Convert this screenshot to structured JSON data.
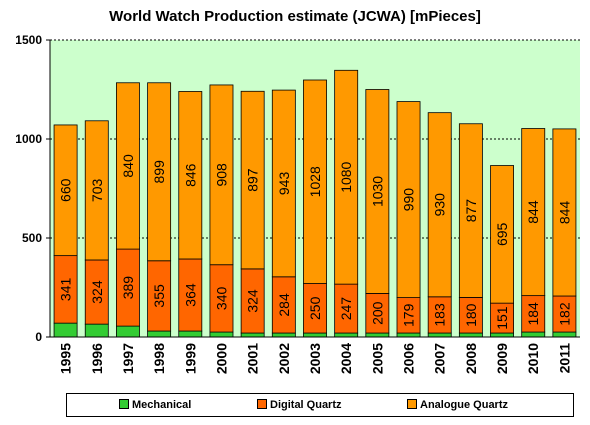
{
  "chart_data": {
    "type": "bar",
    "stacked": true,
    "title": "World Watch Production estimate  (JCWA) [mPieces]",
    "xlabel": "",
    "ylabel": "",
    "ylim": [
      0,
      1500
    ],
    "yticks": [
      0,
      500,
      1000,
      1500
    ],
    "grid": true,
    "legend_position": "bottom",
    "plot_background": "#ccffcc",
    "categories": [
      "1995",
      "1996",
      "1997",
      "1998",
      "1999",
      "2000",
      "2001",
      "2002",
      "2003",
      "2004",
      "2005",
      "2006",
      "2007",
      "2008",
      "2009",
      "2010",
      "2011"
    ],
    "series": [
      {
        "name": "Mechanical",
        "color": "#33cc33",
        "show_labels": false,
        "values": [
          70,
          65,
          55,
          30,
          30,
          25,
          20,
          20,
          20,
          20,
          20,
          20,
          20,
          20,
          20,
          25,
          25
        ]
      },
      {
        "name": "Digital Quartz",
        "color": "#ff6600",
        "show_labels": true,
        "values": [
          341,
          324,
          389,
          355,
          364,
          340,
          324,
          284,
          250,
          247,
          200,
          179,
          183,
          180,
          151,
          184,
          182
        ]
      },
      {
        "name": "Analogue  Quartz",
        "color": "#ff9900",
        "show_labels": true,
        "values": [
          660,
          703,
          840,
          899,
          846,
          908,
          897,
          943,
          1028,
          1080,
          1030,
          990,
          930,
          877,
          695,
          844,
          844
        ]
      }
    ]
  }
}
